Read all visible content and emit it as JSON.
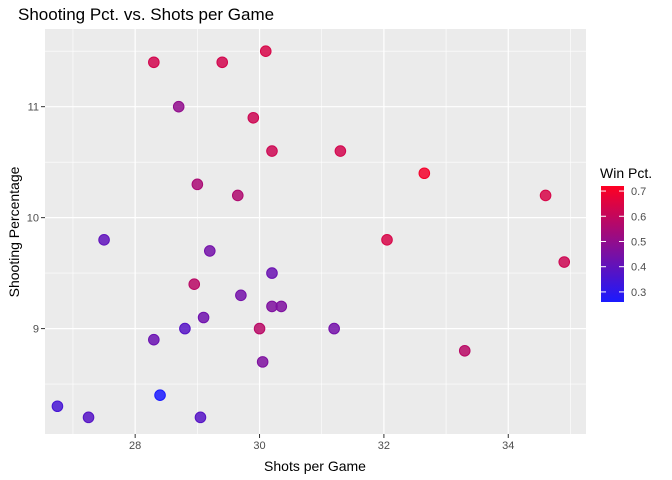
{
  "chart_data": {
    "type": "scatter",
    "title": "Shooting Pct. vs. Shots per Game",
    "xlabel": "Shots per Game",
    "ylabel": "Shooting Percentage",
    "xlim": [
      26.55,
      35.25
    ],
    "ylim": [
      8.05,
      11.7
    ],
    "x_ticks": [
      28,
      30,
      32,
      34
    ],
    "y_ticks": [
      9,
      10,
      11
    ],
    "grid": true,
    "legend": {
      "title": "Win Pct.",
      "placement": "right",
      "range": [
        0.26,
        0.72
      ],
      "ticks": [
        0.3,
        0.4,
        0.5,
        0.6,
        0.7
      ],
      "low_color": "#1a1aff",
      "high_color": "#ff0022"
    },
    "points": [
      {
        "x": 28.3,
        "y": 11.4,
        "win": 0.63
      },
      {
        "x": 29.4,
        "y": 11.4,
        "win": 0.63
      },
      {
        "x": 30.1,
        "y": 11.5,
        "win": 0.64
      },
      {
        "x": 28.7,
        "y": 11.0,
        "win": 0.5
      },
      {
        "x": 29.9,
        "y": 10.9,
        "win": 0.62
      },
      {
        "x": 30.2,
        "y": 10.6,
        "win": 0.62
      },
      {
        "x": 31.3,
        "y": 10.6,
        "win": 0.63
      },
      {
        "x": 32.65,
        "y": 10.4,
        "win": 0.7
      },
      {
        "x": 29.0,
        "y": 10.3,
        "win": 0.55
      },
      {
        "x": 29.65,
        "y": 10.2,
        "win": 0.56
      },
      {
        "x": 34.6,
        "y": 10.2,
        "win": 0.64
      },
      {
        "x": 27.5,
        "y": 9.8,
        "win": 0.4
      },
      {
        "x": 32.05,
        "y": 9.8,
        "win": 0.64
      },
      {
        "x": 29.2,
        "y": 9.7,
        "win": 0.44
      },
      {
        "x": 34.9,
        "y": 9.6,
        "win": 0.62
      },
      {
        "x": 30.2,
        "y": 9.5,
        "win": 0.42
      },
      {
        "x": 28.95,
        "y": 9.4,
        "win": 0.58
      },
      {
        "x": 29.7,
        "y": 9.3,
        "win": 0.44
      },
      {
        "x": 30.2,
        "y": 9.2,
        "win": 0.46
      },
      {
        "x": 30.35,
        "y": 9.2,
        "win": 0.46
      },
      {
        "x": 29.1,
        "y": 9.1,
        "win": 0.43
      },
      {
        "x": 28.8,
        "y": 9.0,
        "win": 0.38
      },
      {
        "x": 30.0,
        "y": 9.0,
        "win": 0.58
      },
      {
        "x": 31.2,
        "y": 9.0,
        "win": 0.44
      },
      {
        "x": 28.3,
        "y": 8.9,
        "win": 0.42
      },
      {
        "x": 33.3,
        "y": 8.8,
        "win": 0.58
      },
      {
        "x": 30.05,
        "y": 8.7,
        "win": 0.46
      },
      {
        "x": 28.4,
        "y": 8.4,
        "win": 0.26
      },
      {
        "x": 26.75,
        "y": 8.3,
        "win": 0.35
      },
      {
        "x": 27.25,
        "y": 8.2,
        "win": 0.38
      },
      {
        "x": 29.05,
        "y": 8.2,
        "win": 0.38
      }
    ]
  }
}
